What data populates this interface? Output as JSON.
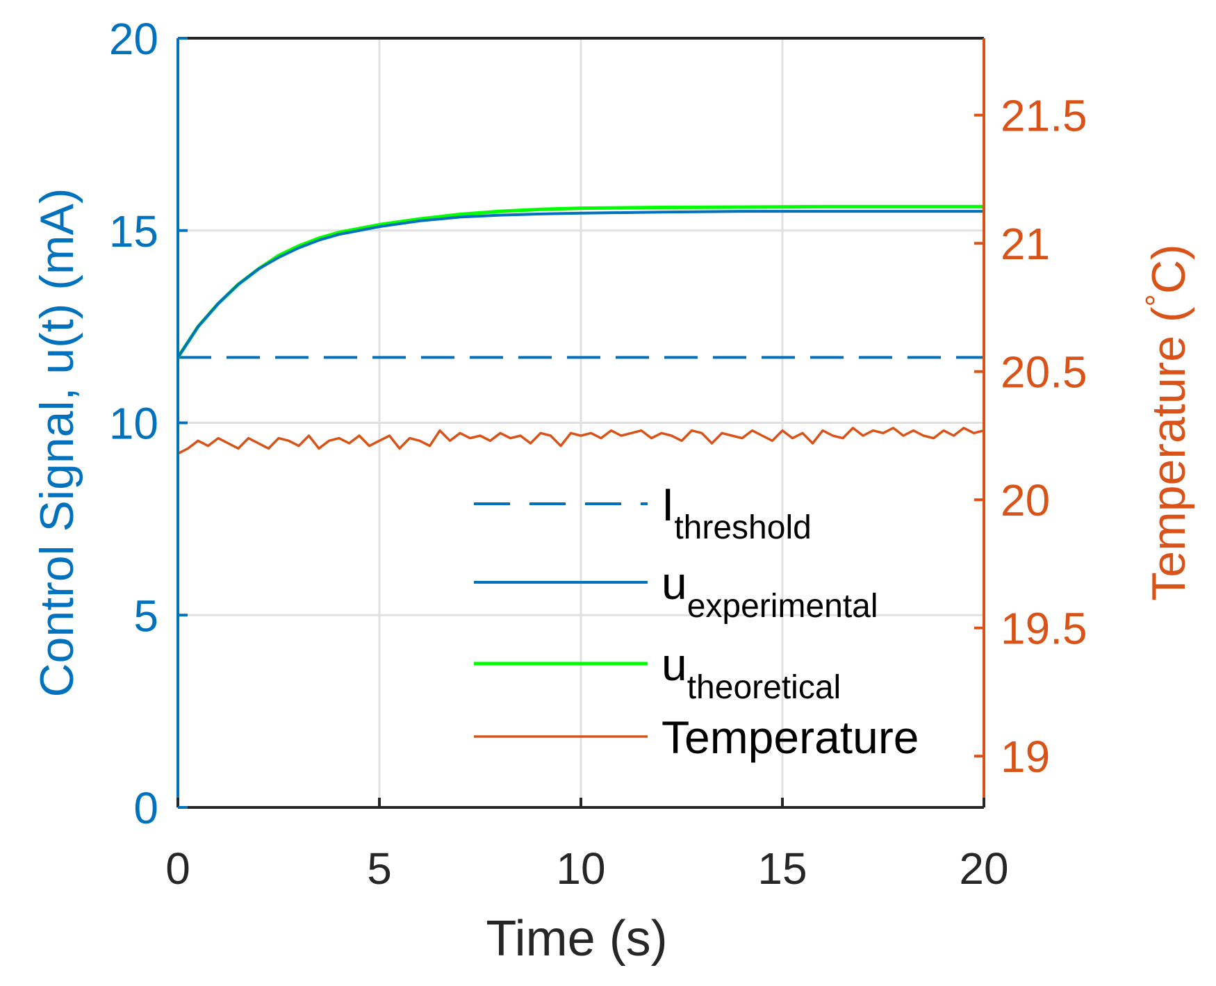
{
  "chart_data": {
    "type": "line",
    "title": "",
    "xlabel": "Time (s)",
    "ylabel_left": "Control Signal, u(t) (mA)",
    "ylabel_right": {
      "base": "Temperature (",
      "degree": "°",
      "unit": "C)"
    },
    "xlim": [
      0,
      20
    ],
    "ylim_left": [
      0,
      20
    ],
    "ylim_right": [
      18.8,
      21.8
    ],
    "x_ticks": [
      "0",
      "5",
      "10",
      "15",
      "20"
    ],
    "y_left_ticks": [
      "0",
      "5",
      "10",
      "15",
      "20"
    ],
    "y_right_ticks": [
      "19",
      "19.5",
      "20",
      "20.5",
      "21",
      "21.5"
    ],
    "grid": true,
    "legend_position": "lower-right",
    "colors": {
      "left_axis": "#0072BD",
      "right_axis": "#D95319",
      "theoretical": "#00FF00",
      "axis": "#262626",
      "grid": "#E0E0E0"
    },
    "series": [
      {
        "name": "I_threshold",
        "legend_main": "I",
        "legend_sub": "threshold",
        "axis": "left",
        "style": "dashed",
        "x": [
          0,
          20
        ],
        "y": [
          11.7,
          11.7
        ]
      },
      {
        "name": "u_experimental",
        "legend_main": "u",
        "legend_sub": "experimental",
        "axis": "left",
        "style": "solid",
        "x": [
          0,
          0.5,
          1,
          1.5,
          2,
          2.5,
          3,
          3.5,
          4,
          5,
          6,
          7,
          8,
          9,
          10,
          12,
          14,
          16,
          18,
          20
        ],
        "y": [
          11.7,
          12.5,
          13.1,
          13.6,
          14.0,
          14.3,
          14.55,
          14.75,
          14.9,
          15.1,
          15.25,
          15.35,
          15.4,
          15.43,
          15.45,
          15.48,
          15.5,
          15.5,
          15.5,
          15.5
        ]
      },
      {
        "name": "u_theoretical",
        "legend_main": "u",
        "legend_sub": "theoretical",
        "axis": "left",
        "style": "solid",
        "x": [
          0,
          0.5,
          1,
          1.5,
          2,
          2.5,
          3,
          3.5,
          4,
          5,
          6,
          7,
          8,
          9,
          10,
          12,
          14,
          16,
          18,
          20
        ],
        "y": [
          11.7,
          12.5,
          13.1,
          13.6,
          14.0,
          14.35,
          14.6,
          14.8,
          14.95,
          15.15,
          15.3,
          15.42,
          15.5,
          15.55,
          15.58,
          15.6,
          15.61,
          15.62,
          15.62,
          15.62
        ]
      },
      {
        "name": "Temperature",
        "legend_main": "Temperature",
        "legend_sub": "",
        "axis": "right",
        "style": "solid",
        "x": [
          0,
          0.25,
          0.5,
          0.75,
          1,
          1.25,
          1.5,
          1.75,
          2,
          2.25,
          2.5,
          2.75,
          3,
          3.25,
          3.5,
          3.75,
          4,
          4.25,
          4.5,
          4.75,
          5,
          5.25,
          5.5,
          5.75,
          6,
          6.25,
          6.5,
          6.75,
          7,
          7.25,
          7.5,
          7.75,
          8,
          8.25,
          8.5,
          8.75,
          9,
          9.25,
          9.5,
          9.75,
          10,
          10.25,
          10.5,
          10.75,
          11,
          11.25,
          11.5,
          11.75,
          12,
          12.25,
          12.5,
          12.75,
          13,
          13.25,
          13.5,
          13.75,
          14,
          14.25,
          14.5,
          14.75,
          15,
          15.25,
          15.5,
          15.75,
          16,
          16.25,
          16.5,
          16.75,
          17,
          17.25,
          17.5,
          17.75,
          18,
          18.25,
          18.5,
          18.75,
          19,
          19.25,
          19.5,
          19.75,
          20
        ],
        "y": [
          20.18,
          20.2,
          20.23,
          20.21,
          20.24,
          20.22,
          20.2,
          20.24,
          20.22,
          20.2,
          20.24,
          20.23,
          20.21,
          20.25,
          20.2,
          20.23,
          20.24,
          20.22,
          20.25,
          20.21,
          20.23,
          20.25,
          20.2,
          20.24,
          20.23,
          20.21,
          20.27,
          20.23,
          20.26,
          20.24,
          20.25,
          20.23,
          20.26,
          20.24,
          20.25,
          20.22,
          20.26,
          20.25,
          20.21,
          20.26,
          20.25,
          20.26,
          20.24,
          20.27,
          20.25,
          20.26,
          20.27,
          20.24,
          20.26,
          20.25,
          20.23,
          20.27,
          20.26,
          20.22,
          20.26,
          20.25,
          20.24,
          20.27,
          20.25,
          20.23,
          20.27,
          20.24,
          20.26,
          20.22,
          20.27,
          20.25,
          20.24,
          20.28,
          20.25,
          20.27,
          20.26,
          20.28,
          20.25,
          20.27,
          20.25,
          20.24,
          20.27,
          20.25,
          20.28,
          20.26,
          20.27
        ]
      }
    ]
  }
}
